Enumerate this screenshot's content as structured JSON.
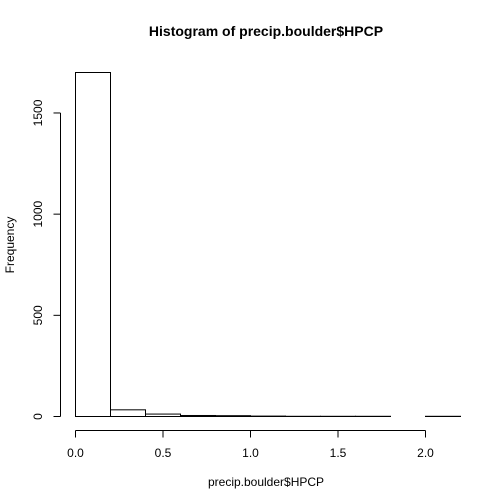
{
  "chart_data": {
    "type": "bar",
    "title": "Histogram of precip.boulder$HPCP",
    "xlabel": "precip.boulder$HPCP",
    "ylabel": "Frequency",
    "bins": [
      {
        "start": 0.0,
        "end": 0.2,
        "count": 1700
      },
      {
        "start": 0.2,
        "end": 0.4,
        "count": 33
      },
      {
        "start": 0.4,
        "end": 0.6,
        "count": 12
      },
      {
        "start": 0.6,
        "end": 0.8,
        "count": 5
      },
      {
        "start": 0.8,
        "end": 1.0,
        "count": 4
      },
      {
        "start": 1.0,
        "end": 1.2,
        "count": 2
      },
      {
        "start": 1.2,
        "end": 1.4,
        "count": 1
      },
      {
        "start": 1.4,
        "end": 1.6,
        "count": 1
      },
      {
        "start": 1.6,
        "end": 1.8,
        "count": 1
      },
      {
        "start": 1.8,
        "end": 2.0,
        "count": 0
      },
      {
        "start": 2.0,
        "end": 2.2,
        "count": 1
      }
    ],
    "xlim": [
      0,
      2.2
    ],
    "ylim": [
      0,
      1700
    ],
    "x_ticks": [
      0.0,
      0.5,
      1.0,
      1.5,
      2.0
    ],
    "x_tick_labels": [
      "0.0",
      "0.5",
      "1.0",
      "1.5",
      "2.0"
    ],
    "y_ticks": [
      0,
      500,
      1000,
      1500
    ],
    "y_tick_labels": [
      "0",
      "500",
      "1000",
      "1500"
    ],
    "grid": false,
    "legend": "none"
  }
}
